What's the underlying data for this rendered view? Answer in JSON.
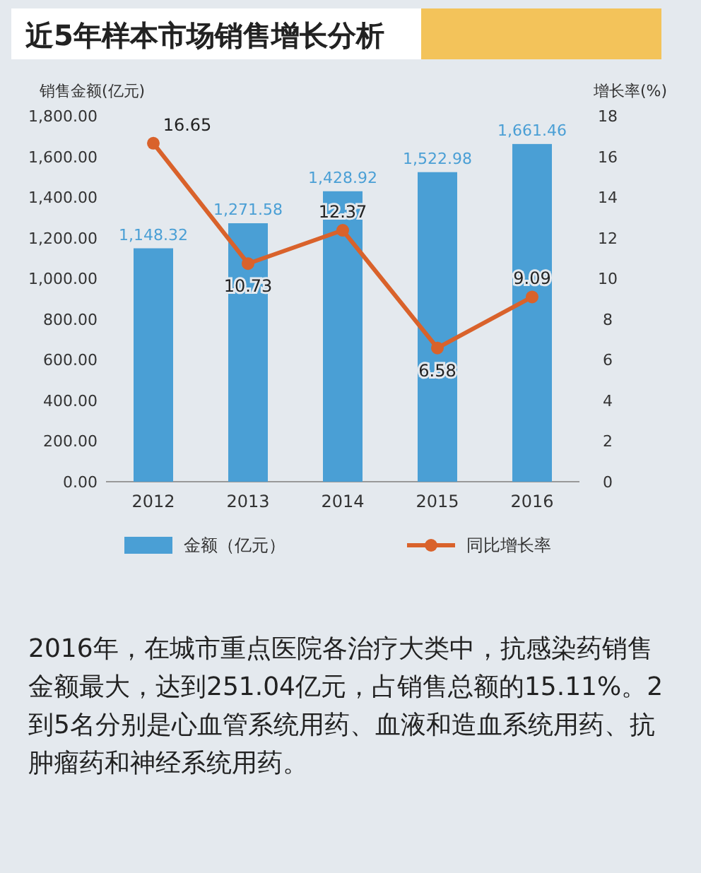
{
  "chart_data": {
    "type": "bar",
    "title": "近5年样本市场销售增长分析",
    "ylabel": "销售金额(亿元)",
    "y2label": "增长率(%)",
    "categories": [
      "2012",
      "2013",
      "2014",
      "2015",
      "2016"
    ],
    "series": [
      {
        "name": "金额（亿元）",
        "color": "#4a9fd5",
        "values": [
          1148.32,
          1271.58,
          1428.92,
          1522.98,
          1661.46
        ],
        "value_labels": [
          "1,148.32",
          "1,271.58",
          "1,428.92",
          "1,522.98",
          "1,661.46"
        ]
      },
      {
        "name": "同比增长率",
        "type": "line",
        "axis": "y2",
        "color": "#d9622b",
        "marker": "circle",
        "values": [
          16.65,
          10.73,
          12.37,
          6.58,
          9.09
        ],
        "value_labels": [
          "16.65",
          "10.73",
          "12.37",
          "6.58",
          "9.09"
        ]
      }
    ],
    "ylim": [
      0,
      1800
    ],
    "yticks": [
      {
        "value": 0,
        "label": "0.00"
      },
      {
        "value": 200,
        "label": "200.00"
      },
      {
        "value": 400,
        "label": "400.00"
      },
      {
        "value": 600,
        "label": "600.00"
      },
      {
        "value": 800,
        "label": "800.00"
      },
      {
        "value": 1000,
        "label": "1,000.00"
      },
      {
        "value": 1200,
        "label": "1,200.00"
      },
      {
        "value": 1400,
        "label": "1,400.00"
      },
      {
        "value": 1600,
        "label": "1,600.00"
      },
      {
        "value": 1800,
        "label": "1,800.00"
      }
    ],
    "y2lim": [
      0,
      18
    ],
    "y2ticks": [
      0,
      2,
      4,
      6,
      8,
      10,
      12,
      14,
      16,
      18
    ],
    "legend": "bottom",
    "grid": false,
    "annotations": [
      "2016年，在城市重点医院各治疗大类中，抗感染药销售金额最大，达到251.04亿元，占销售总额的15.11%。2到5名分别是心血管系统用药、血液和造血系统用药、抗肿瘤药和神经系统用药。"
    ]
  }
}
